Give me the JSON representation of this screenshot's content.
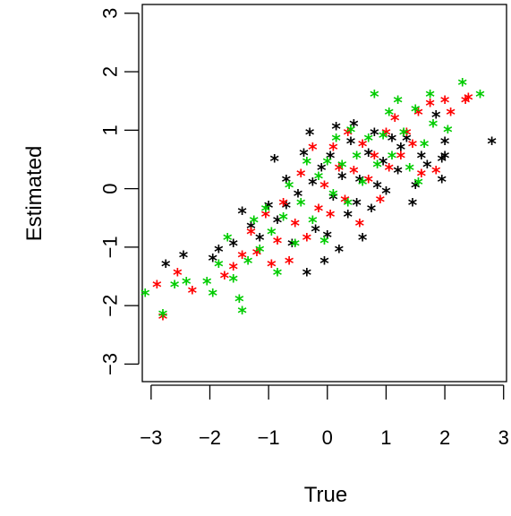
{
  "chart_data": {
    "type": "scatter",
    "title": "",
    "xlabel": "True",
    "ylabel": "Estimated",
    "xlim": [
      -3.15,
      3.05
    ],
    "ylim": [
      -3.3,
      3.15
    ],
    "x_ticks": [
      -3,
      -2,
      -1,
      0,
      1,
      2,
      3
    ],
    "x_tick_labels": [
      "−3",
      "−2",
      "−1",
      "0",
      "1",
      "2",
      "3"
    ],
    "y_ticks": [
      -3,
      -2,
      -1,
      0,
      1,
      2,
      3
    ],
    "y_tick_labels": [
      "−3",
      "−2",
      "−1",
      "0",
      "1",
      "2",
      "3"
    ],
    "marker": "*",
    "grid": false,
    "legend": "none",
    "series": [
      {
        "color": "#000000",
        "points": [
          [
            -2.75,
            -1.3
          ],
          [
            -2.45,
            -1.15
          ],
          [
            -1.95,
            -1.2
          ],
          [
            -1.85,
            -1.05
          ],
          [
            -1.6,
            -0.95
          ],
          [
            -1.45,
            -0.4
          ],
          [
            -1.3,
            -0.65
          ],
          [
            -1.15,
            -0.85
          ],
          [
            -1.0,
            -0.3
          ],
          [
            -0.9,
            0.5
          ],
          [
            -0.85,
            -0.55
          ],
          [
            -0.7,
            -0.3
          ],
          [
            -0.7,
            0.15
          ],
          [
            -0.6,
            -0.95
          ],
          [
            -0.5,
            -0.1
          ],
          [
            -0.4,
            0.6
          ],
          [
            -0.35,
            -1.45
          ],
          [
            -0.3,
            0.95
          ],
          [
            -0.25,
            0.1
          ],
          [
            -0.2,
            -0.7
          ],
          [
            -0.1,
            0.35
          ],
          [
            -0.05,
            -1.25
          ],
          [
            0.0,
            -0.8
          ],
          [
            0.05,
            0.55
          ],
          [
            0.1,
            -0.15
          ],
          [
            0.15,
            1.05
          ],
          [
            0.2,
            -1.05
          ],
          [
            0.25,
            0.2
          ],
          [
            0.35,
            -0.45
          ],
          [
            0.4,
            0.8
          ],
          [
            0.45,
            1.1
          ],
          [
            0.5,
            -0.25
          ],
          [
            0.55,
            0.15
          ],
          [
            0.6,
            -0.85
          ],
          [
            0.7,
            0.6
          ],
          [
            0.75,
            -0.35
          ],
          [
            0.8,
            0.95
          ],
          [
            0.85,
            0.05
          ],
          [
            0.95,
            0.45
          ],
          [
            1.0,
            -0.05
          ],
          [
            1.1,
            0.85
          ],
          [
            1.2,
            0.3
          ],
          [
            1.25,
            0.7
          ],
          [
            1.35,
            0.85
          ],
          [
            1.45,
            -0.25
          ],
          [
            1.5,
            0.05
          ],
          [
            1.6,
            0.55
          ],
          [
            1.7,
            0.4
          ],
          [
            1.85,
            1.25
          ],
          [
            1.95,
            0.5
          ],
          [
            2.0,
            0.8
          ],
          [
            2.0,
            0.55
          ],
          [
            1.95,
            0.15
          ],
          [
            2.8,
            0.8
          ]
        ]
      },
      {
        "color": "#ff0000",
        "points": [
          [
            -2.9,
            -1.65
          ],
          [
            -2.8,
            -2.2
          ],
          [
            -2.55,
            -1.45
          ],
          [
            -2.3,
            -1.75
          ],
          [
            -1.75,
            -1.5
          ],
          [
            -1.6,
            -1.35
          ],
          [
            -1.45,
            -1.15
          ],
          [
            -1.3,
            -0.75
          ],
          [
            -1.2,
            -1.1
          ],
          [
            -1.05,
            -0.45
          ],
          [
            -0.95,
            -1.3
          ],
          [
            -0.85,
            -0.9
          ],
          [
            -0.75,
            -0.25
          ],
          [
            -0.65,
            -1.25
          ],
          [
            -0.55,
            -0.6
          ],
          [
            -0.45,
            0.25
          ],
          [
            -0.35,
            -0.85
          ],
          [
            -0.25,
            0.7
          ],
          [
            -0.15,
            -0.35
          ],
          [
            -0.05,
            0.05
          ],
          [
            0.05,
            -0.45
          ],
          [
            0.1,
            0.7
          ],
          [
            0.2,
            0.35
          ],
          [
            0.3,
            -0.2
          ],
          [
            0.35,
            0.95
          ],
          [
            0.45,
            0.3
          ],
          [
            0.55,
            -0.6
          ],
          [
            0.6,
            0.75
          ],
          [
            0.7,
            0.15
          ],
          [
            0.8,
            0.55
          ],
          [
            0.9,
            -0.2
          ],
          [
            1.0,
            0.95
          ],
          [
            1.05,
            0.35
          ],
          [
            1.15,
            1.2
          ],
          [
            1.25,
            0.55
          ],
          [
            1.35,
            0.95
          ],
          [
            1.45,
            0.75
          ],
          [
            1.55,
            1.3
          ],
          [
            1.6,
            0.25
          ],
          [
            1.75,
            1.45
          ],
          [
            1.85,
            0.3
          ],
          [
            2.0,
            1.5
          ],
          [
            2.1,
            1.3
          ],
          [
            2.35,
            1.5
          ],
          [
            2.4,
            1.55
          ]
        ]
      },
      {
        "color": "#00cc00",
        "points": [
          [
            -3.1,
            -1.8
          ],
          [
            -2.8,
            -2.15
          ],
          [
            -2.6,
            -1.65
          ],
          [
            -2.4,
            -1.6
          ],
          [
            -2.05,
            -1.6
          ],
          [
            -1.95,
            -1.8
          ],
          [
            -1.85,
            -1.3
          ],
          [
            -1.7,
            -0.85
          ],
          [
            -1.6,
            -1.55
          ],
          [
            -1.5,
            -1.9
          ],
          [
            -1.45,
            -2.1
          ],
          [
            -1.35,
            -1.25
          ],
          [
            -1.25,
            -0.55
          ],
          [
            -1.15,
            -1.05
          ],
          [
            -1.05,
            -0.35
          ],
          [
            -0.95,
            -0.75
          ],
          [
            -0.85,
            -1.45
          ],
          [
            -0.75,
            -0.5
          ],
          [
            -0.65,
            0.05
          ],
          [
            -0.55,
            -0.95
          ],
          [
            -0.45,
            -0.25
          ],
          [
            -0.35,
            0.45
          ],
          [
            -0.25,
            -0.55
          ],
          [
            -0.15,
            0.2
          ],
          [
            -0.05,
            -0.9
          ],
          [
            0.0,
            0.45
          ],
          [
            0.1,
            -0.1
          ],
          [
            0.15,
            0.85
          ],
          [
            0.25,
            0.4
          ],
          [
            0.35,
            -0.25
          ],
          [
            0.4,
            1.0
          ],
          [
            0.5,
            0.55
          ],
          [
            0.6,
            0.1
          ],
          [
            0.7,
            0.85
          ],
          [
            0.8,
            1.6
          ],
          [
            0.85,
            0.4
          ],
          [
            0.95,
            0.9
          ],
          [
            1.05,
            1.3
          ],
          [
            1.1,
            0.55
          ],
          [
            1.2,
            1.5
          ],
          [
            1.3,
            0.95
          ],
          [
            1.4,
            0.35
          ],
          [
            1.5,
            1.35
          ],
          [
            1.55,
            0.1
          ],
          [
            1.65,
            0.75
          ],
          [
            1.75,
            1.6
          ],
          [
            1.8,
            1.1
          ],
          [
            2.05,
            1.0
          ],
          [
            2.3,
            1.8
          ],
          [
            2.6,
            1.6
          ]
        ]
      }
    ]
  }
}
